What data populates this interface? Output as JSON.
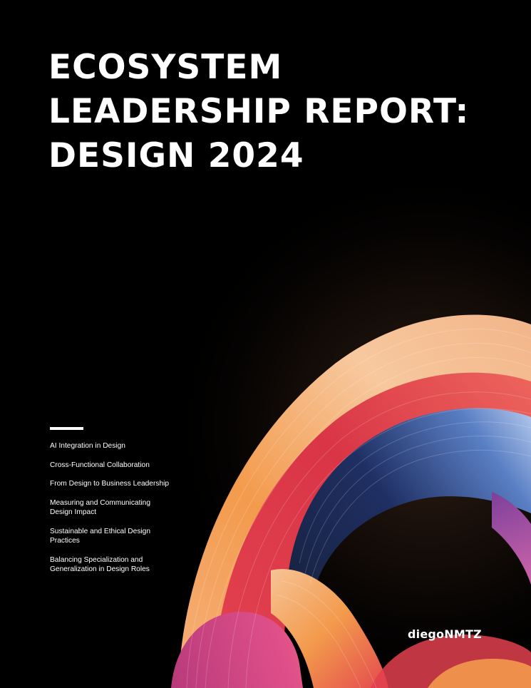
{
  "cover": {
    "title_lines": [
      "ECOSYSTEM",
      "LEADERSHIP REPORT:",
      "DESIGN 2024"
    ],
    "topics": [
      "AI Integration in Design",
      "Cross-Functional Collaboration",
      "From Design to Business Leadership",
      "Measuring and Communicating Design Impact",
      "Sustainable and Ethical Design Practices",
      "Balancing Specialization and Generalization in Design Roles"
    ],
    "brand": "diegoNMTZ",
    "colors": {
      "background": "#000000",
      "text": "#ffffff",
      "art_orange": "#f39a4c",
      "art_peach": "#f7c89e",
      "art_red": "#e2404f",
      "art_pink": "#e0508a",
      "art_navy": "#1f2f63",
      "art_blue": "#5a7fc4",
      "art_purple": "#7a3e9a"
    }
  }
}
